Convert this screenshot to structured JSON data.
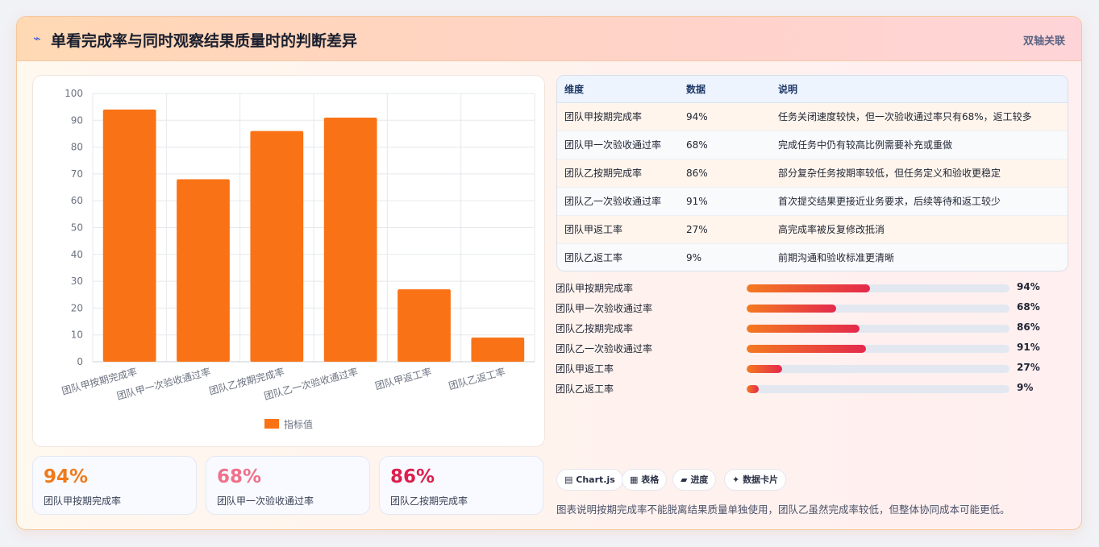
{
  "header": {
    "icon": "flash-icon",
    "title": "单看完成率与同时观察结果质量时的判断差异",
    "tag": "双轴关联"
  },
  "chart_data": {
    "type": "bar",
    "categories": [
      "团队甲按期完成率",
      "团队甲一次验收通过率",
      "团队乙按期完成率",
      "团队乙一次验收通过率",
      "团队甲返工率",
      "团队乙返工率"
    ],
    "series": [
      {
        "name": "指标值",
        "values": [
          94,
          68,
          86,
          91,
          27,
          9
        ],
        "color": "#f97316"
      }
    ],
    "ylim": [
      0,
      100
    ],
    "yticks": [
      0,
      10,
      20,
      30,
      40,
      50,
      60,
      70,
      80,
      90,
      100
    ],
    "grid": true,
    "legend": "bottom"
  },
  "table": {
    "headers": [
      "维度",
      "数据",
      "说明"
    ],
    "rows": [
      [
        "团队甲按期完成率",
        "94%",
        "任务关闭速度较快，但一次验收通过率只有68%，返工较多"
      ],
      [
        "团队甲一次验收通过率",
        "68%",
        "完成任务中仍有较高比例需要补充或重做"
      ],
      [
        "团队乙按期完成率",
        "86%",
        "部分复杂任务按期率较低，但任务定义和验收更稳定"
      ],
      [
        "团队乙一次验收通过率",
        "91%",
        "首次提交结果更接近业务要求，后续等待和返工较少"
      ],
      [
        "团队甲返工率",
        "27%",
        "高完成率被反复修改抵消"
      ],
      [
        "团队乙返工率",
        "9%",
        "前期沟通和验收标准更清晰"
      ]
    ]
  },
  "progress": [
    {
      "label": "团队甲按期完成率",
      "value": 94,
      "text": "94%"
    },
    {
      "label": "团队甲一次验收通过率",
      "value": 68,
      "text": "68%"
    },
    {
      "label": "团队乙按期完成率",
      "value": 86,
      "text": "86%"
    },
    {
      "label": "团队乙一次验收通过率",
      "value": 91,
      "text": "91%"
    },
    {
      "label": "团队甲返工率",
      "value": 27,
      "text": "27%"
    },
    {
      "label": "团队乙返工率",
      "value": 9,
      "text": "9%"
    }
  ],
  "stats": [
    {
      "value": "94%",
      "label": "团队甲按期完成率",
      "color": "#f07a1a"
    },
    {
      "value": "68%",
      "label": "团队甲一次验收通过率",
      "color": "#f0708a"
    },
    {
      "value": "86%",
      "label": "团队乙按期完成率",
      "color": "#dc1f4e"
    }
  ],
  "badges": [
    {
      "icon": "chart-icon",
      "label": "Chart.js"
    },
    {
      "icon": "table-icon",
      "label": "表格"
    },
    {
      "icon": "progress-icon",
      "label": "进度"
    },
    {
      "icon": "card-icon",
      "label": "数据卡片"
    }
  ],
  "footer_note": "图表说明按期完成率不能脱离结果质量单独使用，团队乙虽然完成率较低，但整体协同成本可能更低。"
}
